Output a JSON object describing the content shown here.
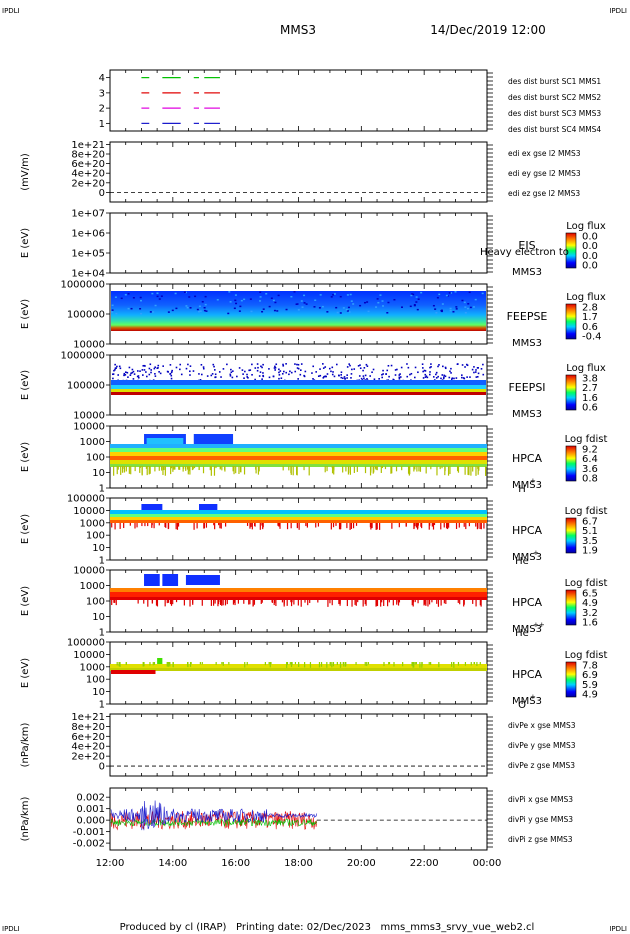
{
  "header": {
    "corner_left": "IPDLI",
    "corner_right": "IPDLI",
    "title": "MMS3",
    "date": "14/Dec/2019 12:00"
  },
  "footer": {
    "corner_left": "IPDLI",
    "corner_right": "IPDLI",
    "text": "Produced by cl (IRAP)   Printing date: 02/Dec/2023   mms_mms3_srvy_vue_web2.cl"
  },
  "colors": {
    "blue": "#1a1acc",
    "magenta": "#e000e0",
    "red": "#e00000",
    "green": "#00c000",
    "black": "#000000"
  },
  "chart_data": [
    {
      "type": "line",
      "panel": "burst",
      "yticks": [
        "1",
        "2",
        "3",
        "4"
      ],
      "ylim": [
        0.5,
        4.5
      ],
      "legend": [
        {
          "text": "des dist burst SC1 MMS1",
          "color": "#1a1acc"
        },
        {
          "text": "des dist burst SC2 MMS2",
          "color": "#e000e0"
        },
        {
          "text": "des dist burst SC3 MMS3",
          "color": "#e00000"
        },
        {
          "text": "des dist burst SC4 MMS4",
          "color": "#00c000"
        }
      ],
      "segments": [
        {
          "level": 4,
          "color": "#00c000",
          "intervals": [
            [
              "13:00",
              "13:15"
            ],
            [
              "13:40",
              "14:15"
            ],
            [
              "14:40",
              "14:50"
            ],
            [
              "15:00",
              "15:30"
            ]
          ]
        },
        {
          "level": 3,
          "color": "#e00000",
          "intervals": [
            [
              "13:00",
              "13:15"
            ],
            [
              "13:40",
              "14:15"
            ],
            [
              "14:40",
              "14:50"
            ],
            [
              "15:00",
              "15:30"
            ]
          ]
        },
        {
          "level": 2,
          "color": "#e000e0",
          "intervals": [
            [
              "13:00",
              "13:15"
            ],
            [
              "13:40",
              "14:15"
            ],
            [
              "14:40",
              "14:50"
            ],
            [
              "15:00",
              "15:30"
            ]
          ]
        },
        {
          "level": 1,
          "color": "#1a1acc",
          "intervals": [
            [
              "13:00",
              "13:15"
            ],
            [
              "13:40",
              "14:15"
            ],
            [
              "14:40",
              "14:50"
            ],
            [
              "15:00",
              "15:30"
            ]
          ]
        }
      ]
    },
    {
      "type": "line",
      "panel": "edi",
      "ylabel": "(mV/m)",
      "yticks": [
        "0",
        "2e+20",
        "4e+20",
        "6e+20",
        "8e+20",
        "1e+21"
      ],
      "ylim": [
        -2e+20,
        1.05e+21
      ],
      "legend": [
        {
          "text": "edi ex gse l2 MMS3",
          "color": "#e00000"
        },
        {
          "text": "edi ey gse l2 MMS3",
          "color": "#00c000"
        },
        {
          "text": "edi ez gse l2 MMS3",
          "color": "#1a1acc"
        }
      ]
    },
    {
      "type": "heatmap",
      "panel": "eis",
      "ylabel": "E (eV)",
      "yticks": [
        "1e+04",
        "1e+05",
        "1e+06",
        "1e+07"
      ],
      "label": [
        "EIS",
        "MMS3"
      ],
      "overlay": "Heavy electron to",
      "cbar_title": "Log flux",
      "cbar_ticks": [
        "0.0",
        "0.0",
        "0.0",
        "0.0"
      ]
    },
    {
      "type": "heatmap",
      "panel": "feeps-e",
      "ylabel": "E (eV)",
      "yticks": [
        "10000",
        "100000",
        "1000000"
      ],
      "label": [
        "FEEPSE",
        "MMS3"
      ],
      "cbar_title": "Log flux",
      "cbar_ticks": [
        "2.8",
        "1.7",
        "0.6",
        "-0.4"
      ]
    },
    {
      "type": "heatmap",
      "panel": "feeps-i",
      "ylabel": "E (eV)",
      "yticks": [
        "10000",
        "100000",
        "1000000"
      ],
      "label": [
        "FEEPSI",
        "MMS3"
      ],
      "cbar_title": "Log flux",
      "cbar_ticks": [
        "3.8",
        "2.7",
        "1.6",
        "0.6"
      ]
    },
    {
      "type": "heatmap",
      "panel": "hpca-h",
      "ylabel": "E (eV)",
      "yticks": [
        "1",
        "10",
        "100",
        "1000",
        "10000"
      ],
      "label": [
        "HPCA",
        "MMS3",
        "H",
        "+"
      ],
      "cbar_title": "Log fdist",
      "cbar_ticks": [
        "9.2",
        "6.4",
        "3.6",
        "0.8"
      ]
    },
    {
      "type": "heatmap",
      "panel": "hpca-he",
      "ylabel": "E (eV)",
      "yticks": [
        "1",
        "10",
        "100",
        "1000",
        "10000",
        "100000"
      ],
      "label": [
        "HPCA",
        "MMS3",
        "He",
        "+"
      ],
      "cbar_title": "Log fdist",
      "cbar_ticks": [
        "6.7",
        "5.1",
        "3.5",
        "1.9"
      ]
    },
    {
      "type": "heatmap",
      "panel": "hpca-he2",
      "ylabel": "E (eV)",
      "yticks": [
        "1",
        "10",
        "100",
        "1000",
        "10000"
      ],
      "label": [
        "HPCA",
        "MMS3",
        "He",
        "++"
      ],
      "cbar_title": "Log fdist",
      "cbar_ticks": [
        "6.5",
        "4.9",
        "3.2",
        "1.6"
      ]
    },
    {
      "type": "heatmap",
      "panel": "hpca-o",
      "ylabel": "E (eV)",
      "yticks": [
        "1",
        "10",
        "100",
        "1000",
        "10000",
        "100000"
      ],
      "label": [
        "HPCA",
        "MMS3",
        "O",
        "+"
      ],
      "cbar_title": "Log fdist",
      "cbar_ticks": [
        "7.8",
        "6.9",
        "5.9",
        "4.9"
      ]
    },
    {
      "type": "line",
      "panel": "divpe",
      "ylabel": "(nPa/km)",
      "yticks": [
        "0",
        "2e+20",
        "4e+20",
        "6e+20",
        "8e+20",
        "1e+21"
      ],
      "ylim": [
        -2e+20,
        1.05e+21
      ],
      "legend": [
        {
          "text": "divPe x gse MMS3",
          "color": "#e00000"
        },
        {
          "text": "divPe y gse MMS3",
          "color": "#00c000"
        },
        {
          "text": "divPe z gse MMS3",
          "color": "#1a1acc"
        }
      ]
    },
    {
      "type": "line",
      "panel": "divpi",
      "ylabel": "(nPa/km)",
      "yticks": [
        "-0.002",
        "-0.001",
        "0.000",
        "0.001",
        "0.002"
      ],
      "ylim": [
        -0.0026,
        0.0028
      ],
      "legend": [
        {
          "text": "divPi x gse MMS3",
          "color": "#e00000"
        },
        {
          "text": "divPi y gse MMS3",
          "color": "#00c000"
        },
        {
          "text": "divPi z gse MMS3",
          "color": "#1a1acc"
        }
      ],
      "data_end": "18:35"
    }
  ],
  "xaxis": {
    "ticks": [
      "12:00",
      "14:00",
      "16:00",
      "18:00",
      "20:00",
      "22:00",
      "00:00"
    ]
  }
}
